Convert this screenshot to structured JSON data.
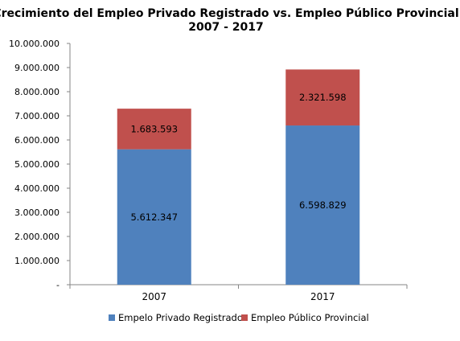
{
  "chart_data": {
    "type": "bar",
    "stacked": true,
    "title": "Crecimiento del Empleo Privado Registrado vs. Empleo Público Provincial",
    "subtitle": "2007 - 2017",
    "categories": [
      "2007",
      "2017"
    ],
    "series": [
      {
        "name": "Empelo Privado Registrado",
        "values": [
          5612347,
          6598829
        ],
        "labels": [
          "5.612.347",
          "6.598.829"
        ],
        "color": "#4f81bd"
      },
      {
        "name": "Empleo Público Provincial",
        "values": [
          1683593,
          2321598
        ],
        "labels": [
          "1.683.593",
          "2.321.598"
        ],
        "color": "#c0504d"
      }
    ],
    "ylim": [
      0,
      10000000
    ],
    "y_ticks": [
      0,
      1000000,
      2000000,
      3000000,
      4000000,
      5000000,
      6000000,
      7000000,
      8000000,
      9000000,
      10000000
    ],
    "y_tick_labels": [
      "-",
      "1.000.000",
      "2.000.000",
      "3.000.000",
      "4.000.000",
      "5.000.000",
      "6.000.000",
      "7.000.000",
      "8.000.000",
      "9.000.000",
      "10.000.000"
    ],
    "xlabel": "",
    "ylabel": "",
    "grid": false,
    "legend": "bottom"
  }
}
